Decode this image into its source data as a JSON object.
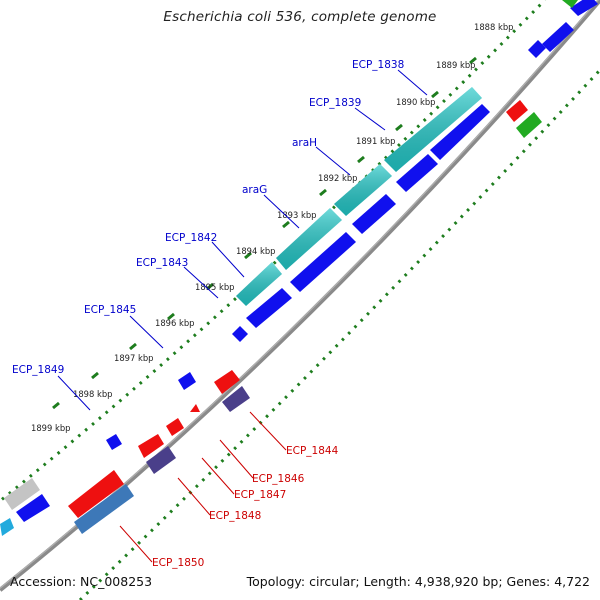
{
  "title": "Escherichia coli 536, complete genome",
  "footer": {
    "accession": "Accession: NC_008253",
    "topology": "Topology: circular; Length: 4,938,920 bp; Genes: 4,722"
  },
  "colors": {
    "backbone": "#8c8c8c",
    "tick_dots": "#1e7d1e",
    "label_blue": "#0000cc",
    "label_red": "#cc0000",
    "blue": "#1010ee",
    "cyan": "#22c8c8",
    "red": "#ee1010",
    "green": "#22aa22",
    "slate": "#4a3f8a",
    "steel": "#3d78b8",
    "grey": "#c4c4c4"
  },
  "ticks": [
    "1888 kbp",
    "1889 kbp",
    "1890 kbp",
    "1891 kbp",
    "1892 kbp",
    "1893 kbp",
    "1894 kbp",
    "1895 kbp",
    "1896 kbp",
    "1897 kbp",
    "1898 kbp",
    "1899 kbp"
  ],
  "gene_labels_top": [
    "ECP_1838",
    "ECP_1839",
    "araH",
    "araG",
    "ECP_1842",
    "ECP_1843",
    "ECP_1845",
    "ECP_1849"
  ],
  "gene_labels_bottom": [
    "ECP_1844",
    "ECP_1846",
    "ECP_1847",
    "ECP_1848",
    "ECP_1850"
  ]
}
